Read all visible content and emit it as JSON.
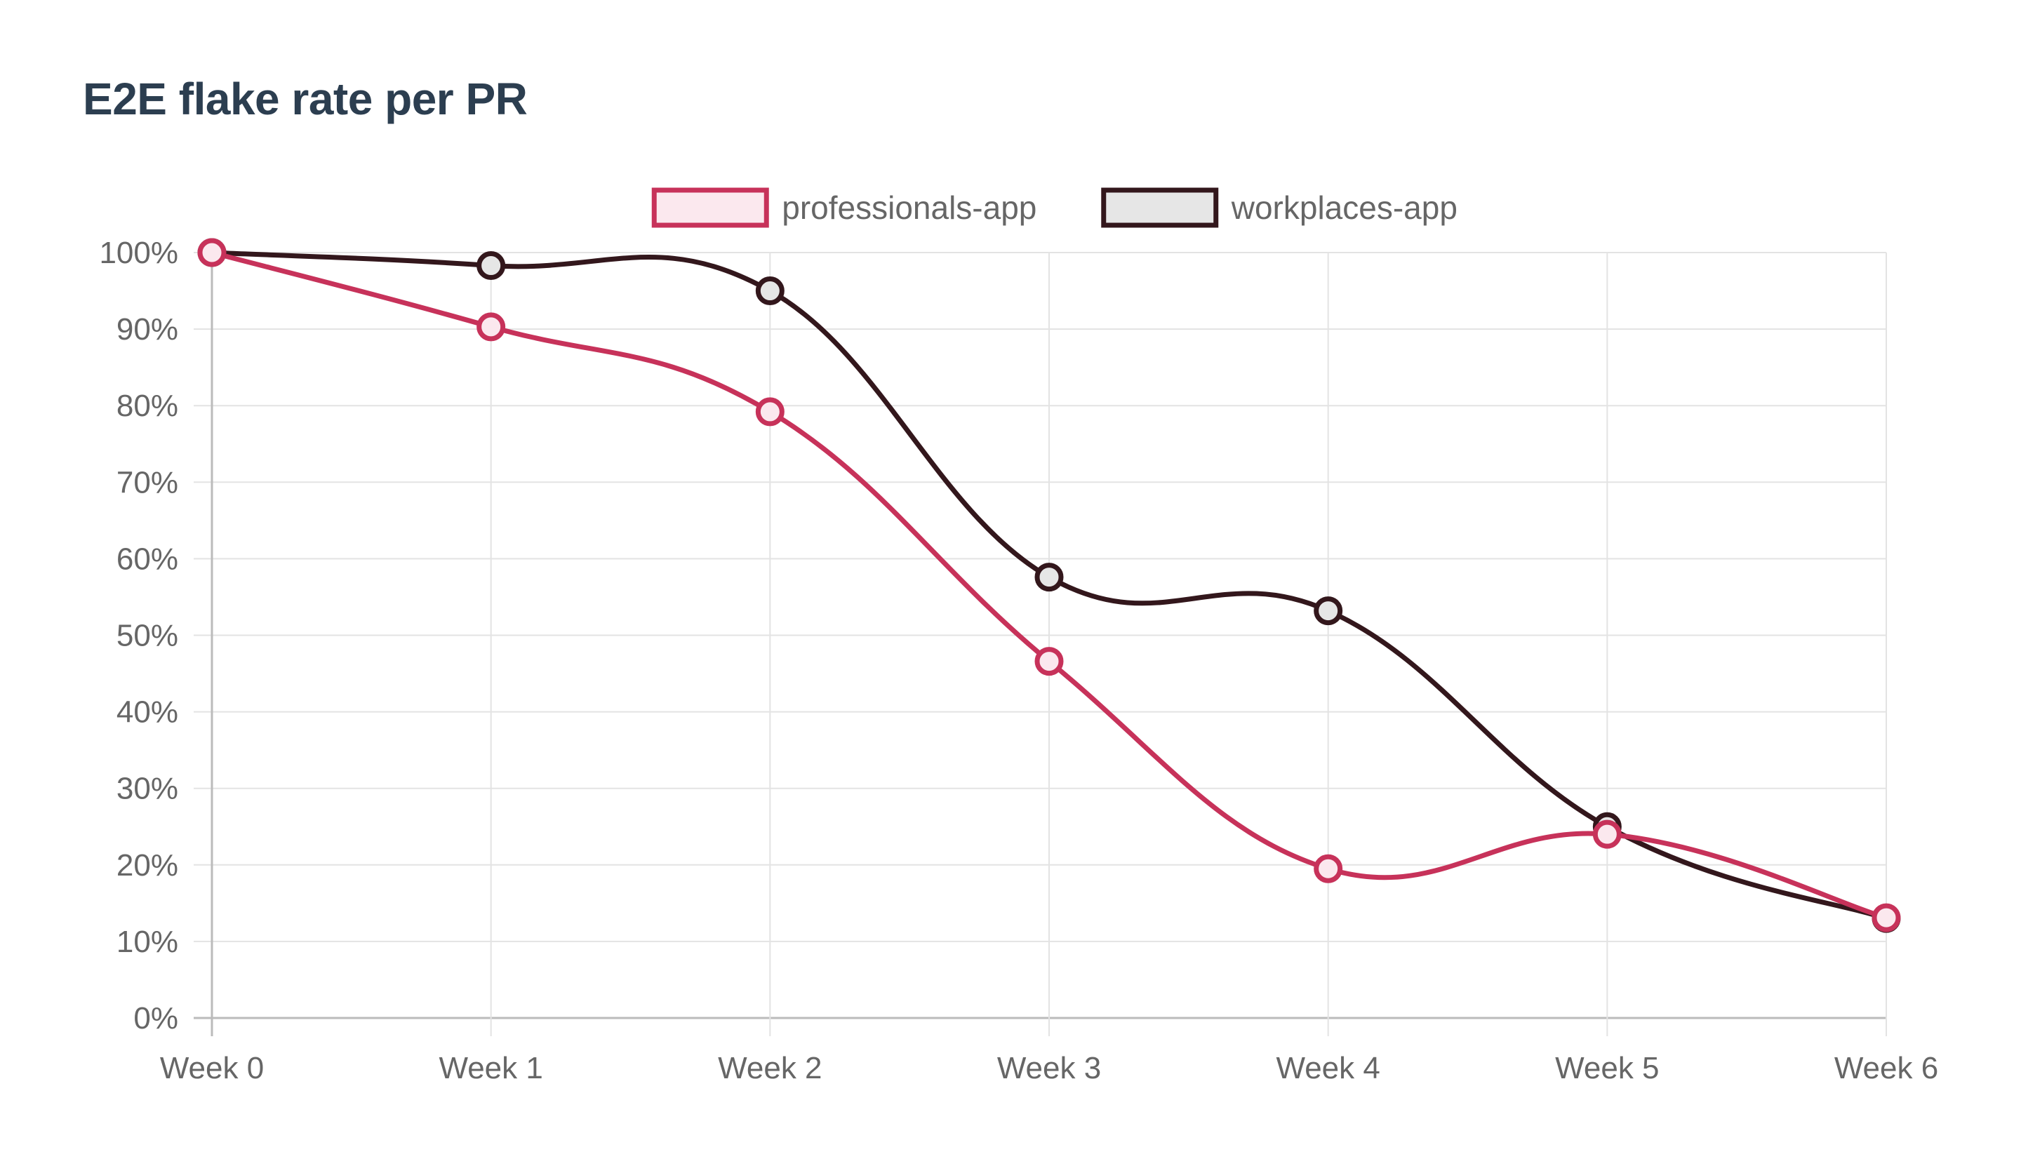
{
  "chart_data": {
    "type": "line",
    "title": "E2E flake rate per PR",
    "xlabel": "",
    "ylabel": "",
    "categories": [
      "Week 0",
      "Week 1",
      "Week 2",
      "Week 3",
      "Week 4",
      "Week 5",
      "Week 6"
    ],
    "y_ticks": [
      "0%",
      "10%",
      "20%",
      "30%",
      "40%",
      "50%",
      "60%",
      "70%",
      "80%",
      "90%",
      "100%"
    ],
    "ylim": [
      0,
      100
    ],
    "grid": true,
    "legend_position": "top",
    "series": [
      {
        "name": "professionals-app",
        "values": [
          100,
          90.3,
          79.2,
          46.6,
          19.5,
          24,
          13.1
        ],
        "color": "#c7325a",
        "fill": "#fbe8ee"
      },
      {
        "name": "workplaces-app",
        "values": [
          100,
          98.3,
          95,
          57.6,
          53.2,
          25,
          13
        ],
        "color": "#33171c",
        "fill": "#e6e6e6"
      }
    ]
  }
}
